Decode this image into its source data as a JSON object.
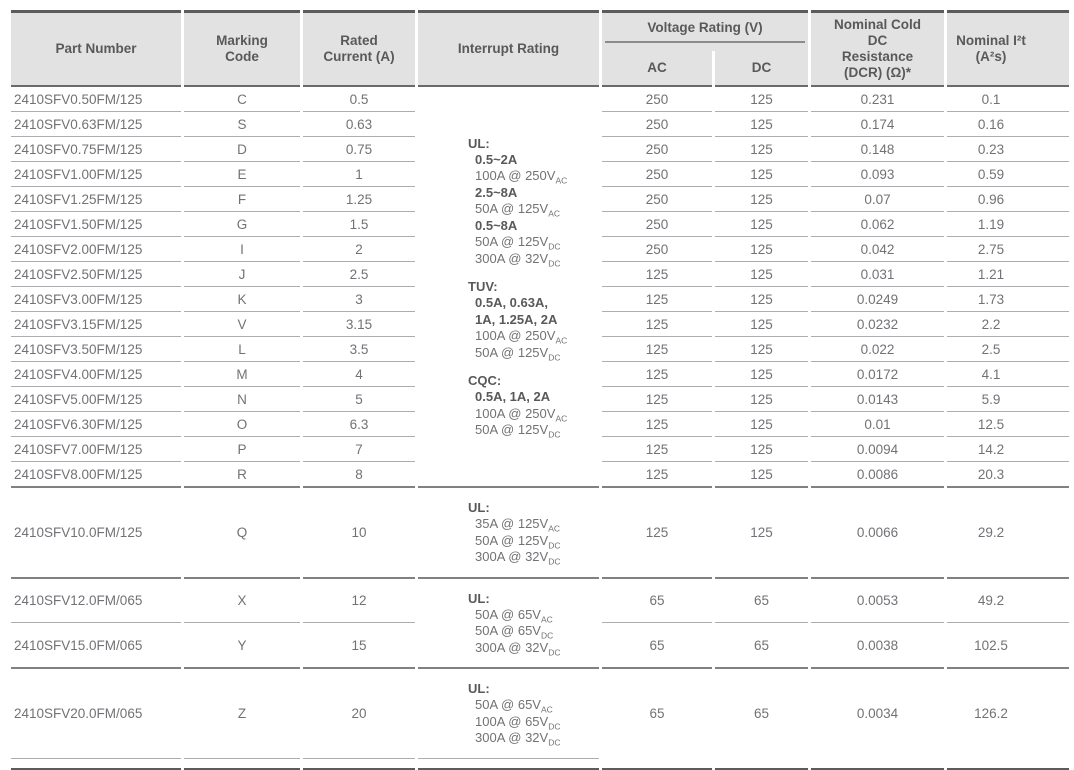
{
  "header": {
    "part": "Part Number",
    "marking": "Marking\nCode",
    "rated": "Rated\nCurrent (A)",
    "interrupt": "Interrupt Rating",
    "voltage_group": "Voltage Rating (V)",
    "ac": "AC",
    "dc": "DC",
    "dcr": "Nominal Cold\nDC\nResistance\n(DCR) (Ω)*",
    "i2t": "Nominal I²t\n(A²s)"
  },
  "rows": [
    {
      "part": "2410SFV0.50FM/125",
      "code": "C",
      "current": "0.5",
      "ac": "250",
      "dc": "125",
      "dcr": "0.231",
      "i2t": "0.1"
    },
    {
      "part": "2410SFV0.63FM/125",
      "code": "S",
      "current": "0.63",
      "ac": "250",
      "dc": "125",
      "dcr": "0.174",
      "i2t": "0.16"
    },
    {
      "part": "2410SFV0.75FM/125",
      "code": "D",
      "current": "0.75",
      "ac": "250",
      "dc": "125",
      "dcr": "0.148",
      "i2t": "0.23"
    },
    {
      "part": "2410SFV1.00FM/125",
      "code": "E",
      "current": "1",
      "ac": "250",
      "dc": "125",
      "dcr": "0.093",
      "i2t": "0.59"
    },
    {
      "part": "2410SFV1.25FM/125",
      "code": "F",
      "current": "1.25",
      "ac": "250",
      "dc": "125",
      "dcr": "0.07",
      "i2t": "0.96"
    },
    {
      "part": "2410SFV1.50FM/125",
      "code": "G",
      "current": "1.5",
      "ac": "250",
      "dc": "125",
      "dcr": "0.062",
      "i2t": "1.19"
    },
    {
      "part": "2410SFV2.00FM/125",
      "code": "I",
      "current": "2",
      "ac": "250",
      "dc": "125",
      "dcr": "0.042",
      "i2t": "2.75"
    },
    {
      "part": "2410SFV2.50FM/125",
      "code": "J",
      "current": "2.5",
      "ac": "125",
      "dc": "125",
      "dcr": "0.031",
      "i2t": "1.21"
    },
    {
      "part": "2410SFV3.00FM/125",
      "code": "K",
      "current": "3",
      "ac": "125",
      "dc": "125",
      "dcr": "0.0249",
      "i2t": "1.73"
    },
    {
      "part": "2410SFV3.15FM/125",
      "code": "V",
      "current": "3.15",
      "ac": "125",
      "dc": "125",
      "dcr": "0.0232",
      "i2t": "2.2"
    },
    {
      "part": "2410SFV3.50FM/125",
      "code": "L",
      "current": "3.5",
      "ac": "125",
      "dc": "125",
      "dcr": "0.022",
      "i2t": "2.5"
    },
    {
      "part": "2410SFV4.00FM/125",
      "code": "M",
      "current": "4",
      "ac": "125",
      "dc": "125",
      "dcr": "0.0172",
      "i2t": "4.1"
    },
    {
      "part": "2410SFV5.00FM/125",
      "code": "N",
      "current": "5",
      "ac": "125",
      "dc": "125",
      "dcr": "0.0143",
      "i2t": "5.9"
    },
    {
      "part": "2410SFV6.30FM/125",
      "code": "O",
      "current": "6.3",
      "ac": "125",
      "dc": "125",
      "dcr": "0.01",
      "i2t": "12.5"
    },
    {
      "part": "2410SFV7.00FM/125",
      "code": "P",
      "current": "7",
      "ac": "125",
      "dc": "125",
      "dcr": "0.0094",
      "i2t": "14.2"
    },
    {
      "part": "2410SFV8.00FM/125",
      "code": "R",
      "current": "8",
      "ac": "125",
      "dc": "125",
      "dcr": "0.0086",
      "i2t": "20.3"
    },
    {
      "part": "2410SFV10.0FM/125",
      "code": "Q",
      "current": "10",
      "ac": "125",
      "dc": "125",
      "dcr": "0.0066",
      "i2t": "29.2"
    },
    {
      "part": "2410SFV12.0FM/065",
      "code": "X",
      "current": "12",
      "ac": "65",
      "dc": "65",
      "dcr": "0.0053",
      "i2t": "49.2"
    },
    {
      "part": "2410SFV15.0FM/065",
      "code": "Y",
      "current": "15",
      "ac": "65",
      "dc": "65",
      "dcr": "0.0038",
      "i2t": "102.5"
    },
    {
      "part": "2410SFV20.0FM/065",
      "code": "Z",
      "current": "20",
      "ac": "65",
      "dc": "65",
      "dcr": "0.0034",
      "i2t": "126.2"
    }
  ],
  "interrupt_cells": [
    {
      "at": 0,
      "span": 16,
      "light": false,
      "blocks": [
        {
          "head": "UL:",
          "lines": [
            {
              "t": "0.5~2A",
              "b": true
            },
            {
              "t": "100A @ 250V",
              "sub": "AC"
            },
            {
              "t": "2.5~8A",
              "b": true
            },
            {
              "t": "50A @ 125V",
              "sub": "AC"
            },
            {
              "t": "0.5~8A",
              "b": true
            },
            {
              "t": "50A @ 125V",
              "sub": "DC"
            },
            {
              "t": "300A @ 32V",
              "sub": "DC"
            }
          ]
        },
        {
          "head": "TUV:",
          "lines": [
            {
              "t": "0.5A, 0.63A,",
              "b": true
            },
            {
              "t": "1A, 1.25A, 2A",
              "b": true
            },
            {
              "t": "100A @ 250V",
              "sub": "AC"
            },
            {
              "t": "50A @ 125V",
              "sub": "DC"
            }
          ]
        },
        {
          "head": "CQC:",
          "lines": [
            {
              "t": "0.5A, 1A, 2A",
              "b": true
            },
            {
              "t": "100A @ 250V",
              "sub": "AC"
            },
            {
              "t": "50A @ 125V",
              "sub": "DC"
            }
          ]
        }
      ]
    },
    {
      "at": 16,
      "span": 1,
      "light": false,
      "blocks": [
        {
          "head": "UL:",
          "lines": [
            {
              "t": "35A @ 125V",
              "sub": "AC"
            },
            {
              "t": "50A @ 125V",
              "sub": "DC"
            },
            {
              "t": "300A @ 32V",
              "sub": "DC"
            }
          ]
        }
      ]
    },
    {
      "at": 17,
      "span": 2,
      "light": false,
      "blocks": [
        {
          "head": "UL:",
          "lines": [
            {
              "t": "50A @ 65V",
              "sub": "AC"
            },
            {
              "t": "50A @ 65V",
              "sub": "DC"
            },
            {
              "t": "300A @ 32V",
              "sub": "DC"
            }
          ]
        }
      ]
    },
    {
      "at": 19,
      "span": 1,
      "light": true,
      "blocks": [
        {
          "head": "UL:",
          "lines": [
            {
              "t": "50A @ 65V",
              "sub": "AC"
            },
            {
              "t": "100A @ 65V",
              "sub": "DC"
            },
            {
              "t": "300A @ 32V",
              "sub": "DC"
            }
          ]
        }
      ]
    }
  ],
  "colors": {
    "header_bg": "#e2e2e2",
    "text_dark": "#58595b",
    "text_body": "#717275",
    "border_dark": "#5b5c5e",
    "border_section": "#7f8184",
    "border_light": "#abadb0"
  }
}
